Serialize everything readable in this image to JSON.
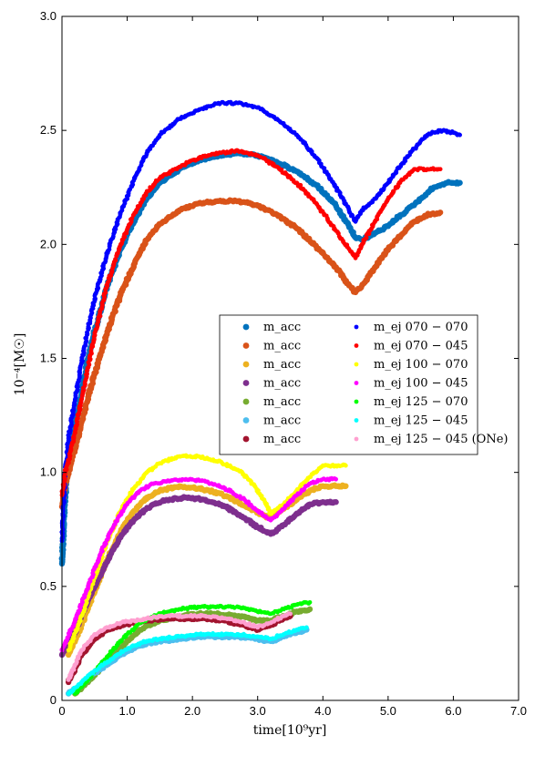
{
  "chart_data": {
    "type": "scatter",
    "xlabel": "time[10⁹yr]",
    "ylabel": "10⁻⁴[M☉]",
    "xlim": [
      0,
      7
    ],
    "ylim": [
      0,
      3
    ],
    "xticks": [
      "0",
      "1.0",
      "2.0",
      "3.0",
      "4.0",
      "5.0",
      "6.0",
      "7.0"
    ],
    "yticks": [
      "0",
      "0.5",
      "1.0",
      "1.5",
      "2.0",
      "2.5",
      "3.0"
    ],
    "grid": false,
    "legend_placement": "center-right",
    "series": [
      {
        "name": "m_acc",
        "legend_label": "m_acc",
        "color": "#0072BD",
        "marker": "large",
        "x": [
          0.0,
          0.05,
          0.1,
          0.2,
          0.3,
          0.4,
          0.5,
          0.7,
          0.9,
          1.1,
          1.3,
          1.5,
          1.8,
          2.1,
          2.4,
          2.7,
          3.0,
          3.3,
          3.6,
          3.9,
          4.2,
          4.4,
          4.5,
          4.6,
          4.8,
          5.0,
          5.2,
          5.5,
          5.7,
          5.9,
          6.1
        ],
        "y": [
          0.6,
          0.9,
          1.05,
          1.2,
          1.35,
          1.5,
          1.62,
          1.82,
          1.98,
          2.1,
          2.2,
          2.27,
          2.33,
          2.37,
          2.39,
          2.4,
          2.39,
          2.36,
          2.32,
          2.26,
          2.17,
          2.08,
          2.03,
          2.02,
          2.05,
          2.08,
          2.13,
          2.2,
          2.25,
          2.27,
          2.27
        ]
      },
      {
        "name": "m_acc",
        "legend_label": "m_acc",
        "color": "#D95319",
        "marker": "large",
        "x": [
          0.0,
          0.05,
          0.1,
          0.2,
          0.3,
          0.4,
          0.5,
          0.7,
          0.9,
          1.1,
          1.3,
          1.5,
          1.8,
          2.1,
          2.4,
          2.7,
          3.0,
          3.3,
          3.6,
          3.9,
          4.2,
          4.4,
          4.5,
          4.6,
          4.8,
          5.0,
          5.2,
          5.4,
          5.6,
          5.8
        ],
        "y": [
          0.85,
          0.95,
          1.0,
          1.1,
          1.22,
          1.33,
          1.43,
          1.62,
          1.78,
          1.91,
          2.02,
          2.09,
          2.15,
          2.18,
          2.19,
          2.19,
          2.17,
          2.13,
          2.07,
          1.99,
          1.9,
          1.82,
          1.79,
          1.82,
          1.9,
          1.98,
          2.04,
          2.1,
          2.13,
          2.14
        ]
      },
      {
        "name": "m_acc",
        "legend_label": "m_acc",
        "color": "#EDB120",
        "marker": "large",
        "x": [
          0.1,
          0.3,
          0.5,
          0.7,
          0.9,
          1.1,
          1.3,
          1.5,
          1.8,
          2.1,
          2.4,
          2.7,
          2.9,
          3.1,
          3.2,
          3.4,
          3.6,
          3.8,
          4.0,
          4.2,
          4.35
        ],
        "y": [
          0.2,
          0.33,
          0.48,
          0.62,
          0.74,
          0.83,
          0.89,
          0.92,
          0.94,
          0.93,
          0.91,
          0.87,
          0.84,
          0.81,
          0.8,
          0.84,
          0.88,
          0.92,
          0.94,
          0.94,
          0.94
        ]
      },
      {
        "name": "m_acc",
        "legend_label": "m_acc",
        "color": "#7E2F8E",
        "marker": "large",
        "x": [
          0.0,
          0.2,
          0.4,
          0.6,
          0.8,
          1.0,
          1.2,
          1.4,
          1.6,
          1.9,
          2.2,
          2.5,
          2.8,
          3.0,
          3.2,
          3.4,
          3.6,
          3.8,
          4.0,
          4.2
        ],
        "y": [
          0.2,
          0.3,
          0.44,
          0.56,
          0.67,
          0.76,
          0.82,
          0.86,
          0.88,
          0.89,
          0.88,
          0.85,
          0.8,
          0.76,
          0.73,
          0.77,
          0.82,
          0.86,
          0.87,
          0.87
        ]
      },
      {
        "name": "m_acc",
        "legend_label": "m_acc",
        "color": "#77AC30",
        "marker": "large",
        "x": [
          0.2,
          0.4,
          0.6,
          0.8,
          1.0,
          1.2,
          1.5,
          1.8,
          2.1,
          2.4,
          2.7,
          3.0,
          3.2,
          3.4,
          3.6,
          3.8
        ],
        "y": [
          0.03,
          0.08,
          0.14,
          0.2,
          0.26,
          0.31,
          0.35,
          0.37,
          0.38,
          0.38,
          0.37,
          0.35,
          0.35,
          0.37,
          0.39,
          0.4
        ]
      },
      {
        "name": "m_acc",
        "legend_label": "m_acc",
        "color": "#4DBEEE",
        "marker": "large",
        "x": [
          0.1,
          0.3,
          0.5,
          0.7,
          0.9,
          1.1,
          1.3,
          1.5,
          1.8,
          2.1,
          2.4,
          2.7,
          3.0,
          3.2,
          3.4,
          3.6,
          3.75
        ],
        "y": [
          0.03,
          0.07,
          0.12,
          0.16,
          0.2,
          0.23,
          0.25,
          0.26,
          0.27,
          0.28,
          0.28,
          0.28,
          0.27,
          0.26,
          0.28,
          0.3,
          0.31
        ]
      },
      {
        "name": "m_acc",
        "legend_label": "m_acc",
        "color": "#A2142F",
        "marker": "large",
        "x": [
          0.1,
          0.3,
          0.5,
          0.7,
          0.9,
          1.1,
          1.3,
          1.6,
          1.9,
          2.2,
          2.5,
          2.8,
          3.0,
          3.2,
          3.4,
          3.5
        ],
        "y": [
          0.08,
          0.2,
          0.27,
          0.31,
          0.33,
          0.34,
          0.35,
          0.36,
          0.36,
          0.36,
          0.35,
          0.33,
          0.31,
          0.33,
          0.36,
          0.37
        ]
      },
      {
        "name": "m_ej 070 − 070",
        "legend_label": "m_ej 070 − 070",
        "color": "#0000FF",
        "marker": "small",
        "x": [
          0.0,
          0.05,
          0.1,
          0.2,
          0.3,
          0.4,
          0.5,
          0.7,
          0.9,
          1.1,
          1.3,
          1.5,
          1.8,
          2.1,
          2.4,
          2.7,
          3.0,
          3.3,
          3.6,
          3.9,
          4.2,
          4.4,
          4.5,
          4.6,
          4.8,
          5.0,
          5.2,
          5.4,
          5.6,
          5.8,
          6.0,
          6.1
        ],
        "y": [
          0.7,
          1.0,
          1.15,
          1.32,
          1.48,
          1.63,
          1.76,
          1.97,
          2.14,
          2.28,
          2.4,
          2.48,
          2.55,
          2.59,
          2.62,
          2.62,
          2.6,
          2.55,
          2.48,
          2.38,
          2.25,
          2.15,
          2.1,
          2.15,
          2.2,
          2.27,
          2.35,
          2.42,
          2.48,
          2.5,
          2.49,
          2.48
        ]
      },
      {
        "name": "m_ej 070 − 045",
        "legend_label": "m_ej 070 − 045",
        "color": "#FF0000",
        "marker": "small",
        "x": [
          0.0,
          0.05,
          0.1,
          0.2,
          0.3,
          0.4,
          0.5,
          0.7,
          0.9,
          1.1,
          1.3,
          1.5,
          1.8,
          2.1,
          2.4,
          2.7,
          3.0,
          3.3,
          3.6,
          3.9,
          4.2,
          4.4,
          4.5,
          4.6,
          4.8,
          5.0,
          5.2,
          5.4,
          5.6,
          5.8
        ],
        "y": [
          0.9,
          1.0,
          1.05,
          1.18,
          1.32,
          1.46,
          1.6,
          1.83,
          2.0,
          2.13,
          2.23,
          2.29,
          2.34,
          2.38,
          2.4,
          2.41,
          2.39,
          2.34,
          2.27,
          2.18,
          2.06,
          1.98,
          1.94,
          2.0,
          2.1,
          2.2,
          2.28,
          2.33,
          2.33,
          2.33
        ]
      },
      {
        "name": "m_ej 100 − 070",
        "legend_label": "m_ej 100 − 070",
        "color": "#FFFF00",
        "marker": "small",
        "x": [
          0.1,
          0.3,
          0.5,
          0.7,
          0.9,
          1.1,
          1.3,
          1.5,
          1.8,
          2.1,
          2.4,
          2.7,
          2.9,
          3.1,
          3.2,
          3.4,
          3.6,
          3.8,
          4.0,
          4.2,
          4.35
        ],
        "y": [
          0.22,
          0.37,
          0.54,
          0.7,
          0.83,
          0.93,
          1.0,
          1.04,
          1.07,
          1.07,
          1.05,
          1.01,
          0.96,
          0.88,
          0.82,
          0.86,
          0.92,
          0.98,
          1.03,
          1.03,
          1.03
        ]
      },
      {
        "name": "m_ej 100 − 045",
        "legend_label": "m_ej 100 − 045",
        "color": "#FF00FF",
        "marker": "small",
        "x": [
          0.0,
          0.2,
          0.4,
          0.6,
          0.8,
          1.0,
          1.2,
          1.4,
          1.6,
          1.9,
          2.2,
          2.5,
          2.8,
          3.0,
          3.2,
          3.4,
          3.6,
          3.8,
          4.0,
          4.2
        ],
        "y": [
          0.22,
          0.35,
          0.5,
          0.65,
          0.77,
          0.86,
          0.92,
          0.95,
          0.96,
          0.97,
          0.96,
          0.93,
          0.88,
          0.83,
          0.79,
          0.84,
          0.9,
          0.95,
          0.97,
          0.97
        ]
      },
      {
        "name": "m_ej 125 − 070",
        "legend_label": "m_ej 125 − 070",
        "color": "#00FF00",
        "marker": "small",
        "x": [
          0.2,
          0.4,
          0.6,
          0.8,
          1.0,
          1.2,
          1.5,
          1.8,
          2.1,
          2.4,
          2.7,
          3.0,
          3.2,
          3.4,
          3.6,
          3.8
        ],
        "y": [
          0.03,
          0.09,
          0.16,
          0.23,
          0.29,
          0.34,
          0.38,
          0.4,
          0.41,
          0.41,
          0.41,
          0.39,
          0.38,
          0.4,
          0.42,
          0.43
        ]
      },
      {
        "name": "m_ej 125 − 045",
        "legend_label": "m_ej 125 − 045",
        "color": "#00FFFF",
        "marker": "small",
        "x": [
          0.1,
          0.3,
          0.5,
          0.7,
          0.9,
          1.1,
          1.3,
          1.5,
          1.8,
          2.1,
          2.4,
          2.7,
          3.0,
          3.2,
          3.4,
          3.6,
          3.75
        ],
        "y": [
          0.03,
          0.08,
          0.13,
          0.17,
          0.21,
          0.24,
          0.26,
          0.27,
          0.28,
          0.29,
          0.29,
          0.29,
          0.28,
          0.27,
          0.29,
          0.31,
          0.32
        ]
      },
      {
        "name": "m_ej 125 − 045 (ONe)",
        "legend_label": "m_ej 125 − 045 (ONe)",
        "color": "#FFA0D0",
        "marker": "small",
        "x": [
          0.1,
          0.3,
          0.5,
          0.7,
          0.9,
          1.1,
          1.3,
          1.6,
          1.9,
          2.2,
          2.5,
          2.8,
          3.0,
          3.2,
          3.4,
          3.5
        ],
        "y": [
          0.09,
          0.22,
          0.29,
          0.32,
          0.34,
          0.35,
          0.36,
          0.37,
          0.37,
          0.37,
          0.36,
          0.34,
          0.32,
          0.34,
          0.37,
          0.38
        ]
      }
    ]
  }
}
